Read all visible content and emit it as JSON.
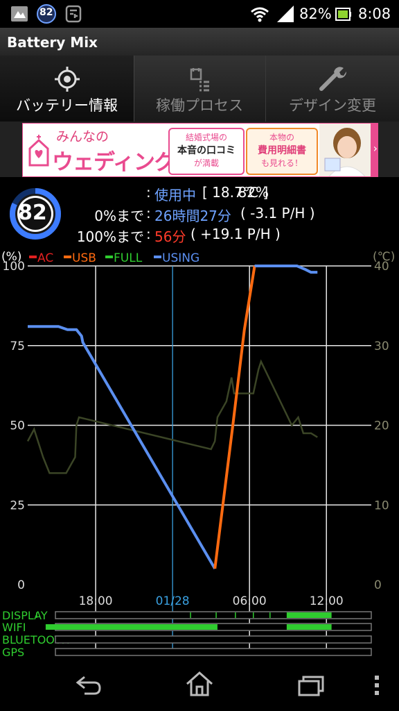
{
  "status": {
    "icons_left": [
      "photo-icon",
      "badge-icon",
      "phone-app-icon"
    ],
    "badge": "82",
    "battery_percent": "82%",
    "time": "8:08"
  },
  "app": {
    "title": "Battery Mix"
  },
  "tabs": [
    {
      "label": "バッテリー情報",
      "icon": "target-icon",
      "selected": true
    },
    {
      "label": "稼働プロセス",
      "icon": "process-list-icon",
      "selected": false
    },
    {
      "label": "デザイン変更",
      "icon": "wrench-icon",
      "selected": false
    }
  ],
  "ad": {
    "brand_small": "みんなの",
    "brand_big": "ウェディング",
    "box1": [
      "結婚式場の",
      "本音の口コミ",
      "が満載"
    ],
    "box2": [
      "本物の",
      "費用明細書",
      "も見れる！"
    ]
  },
  "battery": {
    "level": "82",
    "line1": {
      "percent": "82%",
      "sep": ":",
      "state": "使用中",
      "temp": "[ 18.7℃ ]"
    },
    "line2": {
      "label": "0%まで",
      "sep": ":",
      "time": "26時間27分",
      "rate": "( -3.1 P/H )"
    },
    "line3": {
      "label": "100%まで",
      "sep": ":",
      "time": "56分",
      "rate": "( +19.1 P/H )"
    }
  },
  "colors": {
    "ac": "#e02020",
    "usb": "#ff6a10",
    "full": "#2fcc2f",
    "using": "#5b8ff0",
    "temp": "#2a3a1a",
    "axis_right": "#8a8a70",
    "now_line": "#3aa0e0"
  },
  "chart_data": {
    "type": "line",
    "legend": [
      "AC",
      "USB",
      "FULL",
      "USING"
    ],
    "y_left_label": "(%)",
    "y_right_label": "(℃)",
    "y_left_ticks": [
      "100",
      "75",
      "50",
      "25",
      "0"
    ],
    "y_right_ticks": [
      "40",
      "30",
      "20",
      "10",
      "0"
    ],
    "x_ticks": [
      "18:00",
      "01/28",
      "06:00",
      "12:00"
    ],
    "ylim_left": [
      0,
      100
    ],
    "ylim_right": [
      0,
      40
    ],
    "x_range_hours": [
      -17.3,
      9.5
    ],
    "x_tick_hours": [
      -12,
      -6,
      0,
      6
    ],
    "battery_series": [
      {
        "state": "USING",
        "points": [
          [
            -17.3,
            81
          ],
          [
            -14.9,
            81
          ],
          [
            -14.2,
            80
          ],
          [
            -13.5,
            80
          ],
          [
            -13.1,
            78
          ],
          [
            -13.0,
            76
          ],
          [
            -2.7,
            5
          ]
        ]
      },
      {
        "state": "USB",
        "points": [
          [
            -2.7,
            5
          ],
          [
            -1.3,
            50
          ],
          [
            -0.4,
            80
          ],
          [
            0.4,
            100
          ]
        ]
      },
      {
        "state": "USING",
        "points": [
          [
            0.4,
            100
          ],
          [
            3.7,
            100
          ],
          [
            4.3,
            99
          ],
          [
            4.8,
            98
          ],
          [
            5.3,
            98
          ]
        ]
      }
    ],
    "temperature_series": {
      "name": "temperature",
      "points": [
        [
          -17.3,
          18
        ],
        [
          -16.8,
          19.5
        ],
        [
          -16.1,
          16
        ],
        [
          -15.6,
          14
        ],
        [
          -14.3,
          14
        ],
        [
          -13.6,
          16
        ],
        [
          -13.5,
          20
        ],
        [
          -13.3,
          21
        ],
        [
          -3.0,
          17
        ],
        [
          -2.7,
          18
        ],
        [
          -2.5,
          21
        ],
        [
          -1.8,
          23
        ],
        [
          -1.4,
          26
        ],
        [
          -1.2,
          24
        ],
        [
          0.3,
          24
        ],
        [
          0.7,
          27
        ],
        [
          0.9,
          28
        ],
        [
          3.3,
          20
        ],
        [
          3.8,
          21
        ],
        [
          4.2,
          19
        ],
        [
          4.8,
          19
        ],
        [
          5.3,
          18.5
        ]
      ]
    },
    "activity": [
      {
        "name": "DISPLAY",
        "segments": [
          [
            2.9,
            6.4
          ]
        ],
        "ticks": [
          -16.6,
          -4.6,
          -2.6,
          -1.1,
          0.3,
          1.6
        ]
      },
      {
        "name": "WIFI",
        "segments": [
          [
            -15.9,
            -2.5
          ],
          [
            2.9,
            6.4
          ]
        ],
        "ticks": []
      },
      {
        "name": "BLUETOOTH",
        "segments": [],
        "ticks": []
      },
      {
        "name": "GPS",
        "segments": [],
        "ticks": []
      }
    ]
  },
  "nav": {
    "back": "back-icon",
    "home": "home-icon",
    "recent": "recent-apps-icon",
    "menu": "menu-icon"
  }
}
